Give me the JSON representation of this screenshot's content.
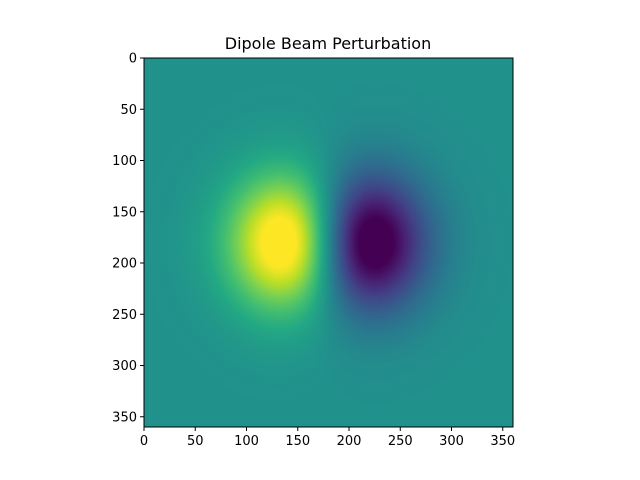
{
  "chart_data": {
    "type": "heatmap",
    "title": "Dipole Beam Perturbation",
    "xlabel": "",
    "ylabel": "",
    "grid": false,
    "colormap": "viridis",
    "xlim": [
      0,
      360
    ],
    "ylim": [
      360,
      0
    ],
    "xticks": [
      0,
      50,
      100,
      150,
      200,
      250,
      300,
      350
    ],
    "yticks": [
      0,
      50,
      100,
      150,
      200,
      250,
      300,
      350
    ],
    "field": {
      "size": [
        360,
        360
      ],
      "background_level": 0.5,
      "components": [
        {
          "kind": "positive-lobe",
          "center_x": 148,
          "center_y": 180,
          "level": 1.0
        },
        {
          "kind": "negative-lobe",
          "center_x": 210,
          "center_y": 180,
          "level": 0.0
        }
      ]
    }
  }
}
